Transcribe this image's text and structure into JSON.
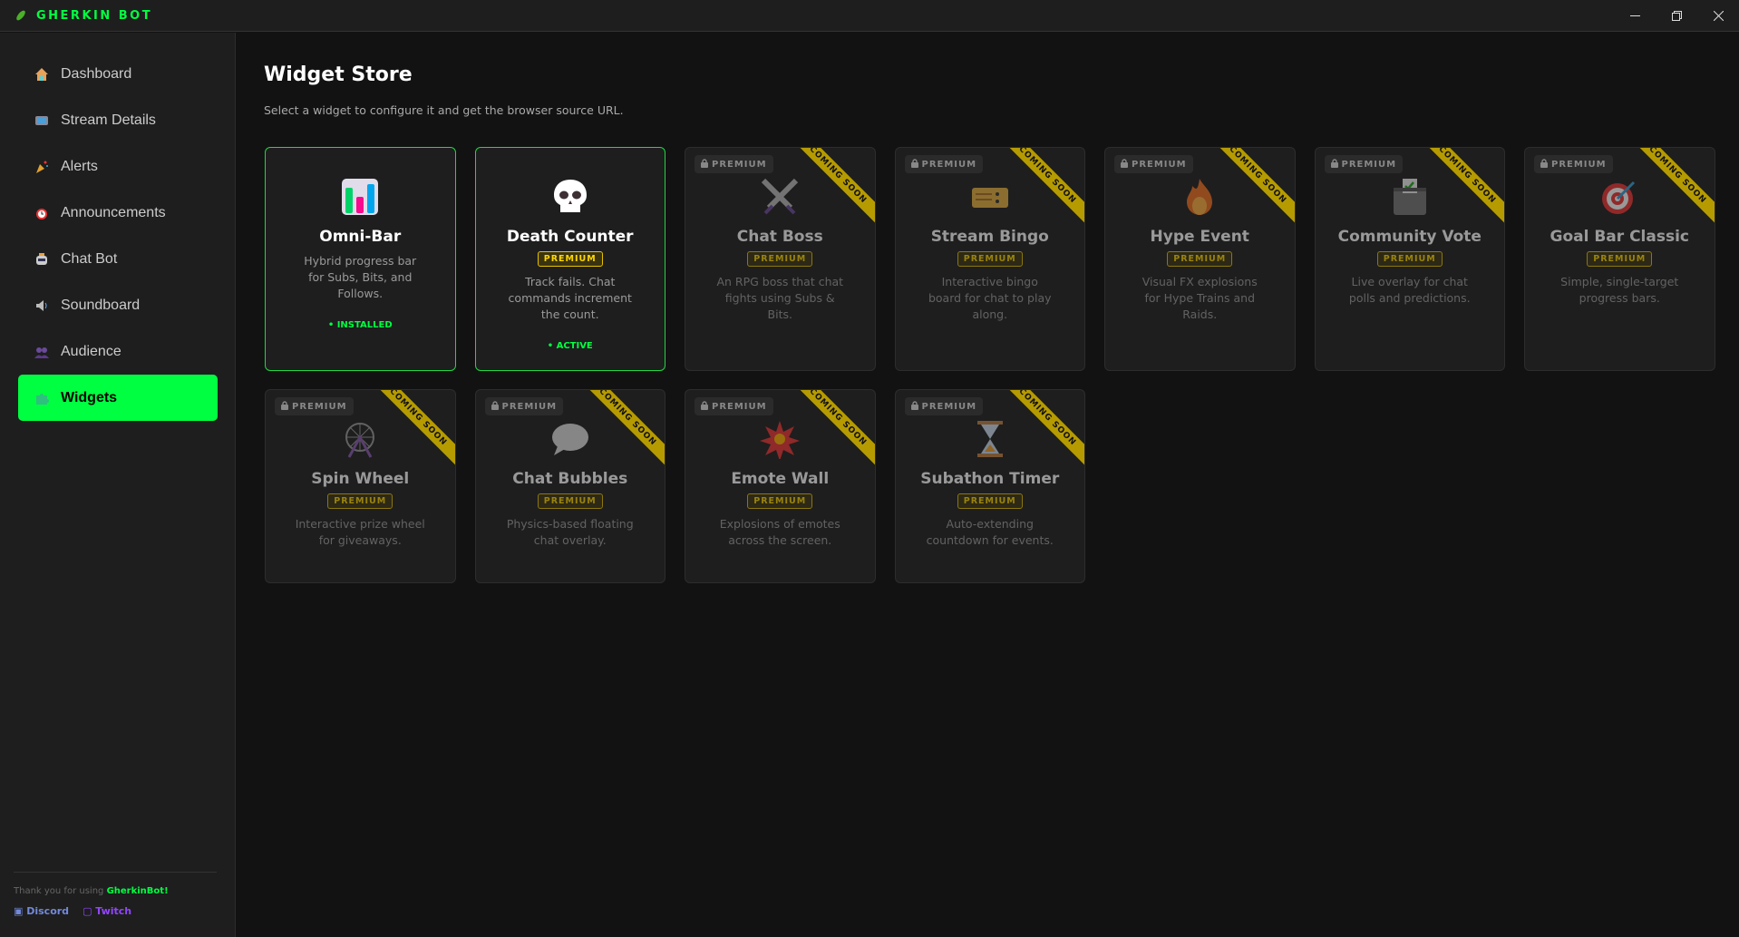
{
  "app": {
    "title": "GHERKIN BOT",
    "window_controls": [
      "minimize",
      "restore",
      "close"
    ]
  },
  "sidebar": {
    "items": [
      {
        "label": "Dashboard",
        "icon": "house-icon"
      },
      {
        "label": "Stream Details",
        "icon": "tv-icon"
      },
      {
        "label": "Alerts",
        "icon": "party-popper-icon"
      },
      {
        "label": "Announcements",
        "icon": "alarm-clock-icon"
      },
      {
        "label": "Chat Bot",
        "icon": "robot-icon"
      },
      {
        "label": "Soundboard",
        "icon": "speaker-icon"
      },
      {
        "label": "Audience",
        "icon": "people-icon"
      },
      {
        "label": "Widgets",
        "icon": "puzzle-icon",
        "active": true
      }
    ],
    "footer": {
      "thanks": "Thank you for using ",
      "brand": "GherkinBot!",
      "discord": "Discord",
      "twitch": "Twitch"
    }
  },
  "page": {
    "title": "Widget Store",
    "subtitle": "Select a widget to configure it and get the browser source URL."
  },
  "labels": {
    "premium": "PREMIUM",
    "lock_premium": "PREMIUM",
    "coming_soon": "COMING SOON"
  },
  "colors": {
    "accent": "#00ff41",
    "premium": "#ffd700",
    "ribbon": "#b69b00",
    "discord": "#7289da",
    "twitch": "#9146ff"
  },
  "widgets": [
    {
      "title": "Omni-Bar",
      "icon": "bar-chart-icon",
      "desc": "Hybrid progress bar for Subs, Bits, and Follows.",
      "premium": false,
      "status": "• INSTALLED"
    },
    {
      "title": "Death Counter",
      "icon": "skull-icon",
      "desc": "Track fails. Chat commands increment the count.",
      "premium": true,
      "status": "• ACTIVE"
    },
    {
      "title": "Chat Boss",
      "icon": "crossed-swords-icon",
      "desc": "An RPG boss that chat fights using Subs & Bits.",
      "premium": true,
      "coming_soon": true
    },
    {
      "title": "Stream Bingo",
      "icon": "ticket-icon",
      "desc": "Interactive bingo board for chat to play along.",
      "premium": true,
      "coming_soon": true
    },
    {
      "title": "Hype Event",
      "icon": "fire-icon",
      "desc": "Visual FX explosions for Hype Trains and Raids.",
      "premium": true,
      "coming_soon": true
    },
    {
      "title": "Community Vote",
      "icon": "ballot-box-icon",
      "desc": "Live overlay for chat polls and predictions.",
      "premium": true,
      "coming_soon": true
    },
    {
      "title": "Goal Bar Classic",
      "icon": "target-icon",
      "desc": "Simple, single-target progress bars.",
      "premium": true,
      "coming_soon": true
    },
    {
      "title": "Spin Wheel",
      "icon": "ferris-wheel-icon",
      "desc": "Interactive prize wheel for giveaways.",
      "premium": true,
      "coming_soon": true
    },
    {
      "title": "Chat Bubbles",
      "icon": "speech-bubble-icon",
      "desc": "Physics-based floating chat overlay.",
      "premium": true,
      "coming_soon": true
    },
    {
      "title": "Emote Wall",
      "icon": "explosion-icon",
      "desc": "Explosions of emotes across the screen.",
      "premium": true,
      "coming_soon": true
    },
    {
      "title": "Subathon Timer",
      "icon": "hourglass-icon",
      "desc": "Auto-extending countdown for events.",
      "premium": true,
      "coming_soon": true
    }
  ]
}
